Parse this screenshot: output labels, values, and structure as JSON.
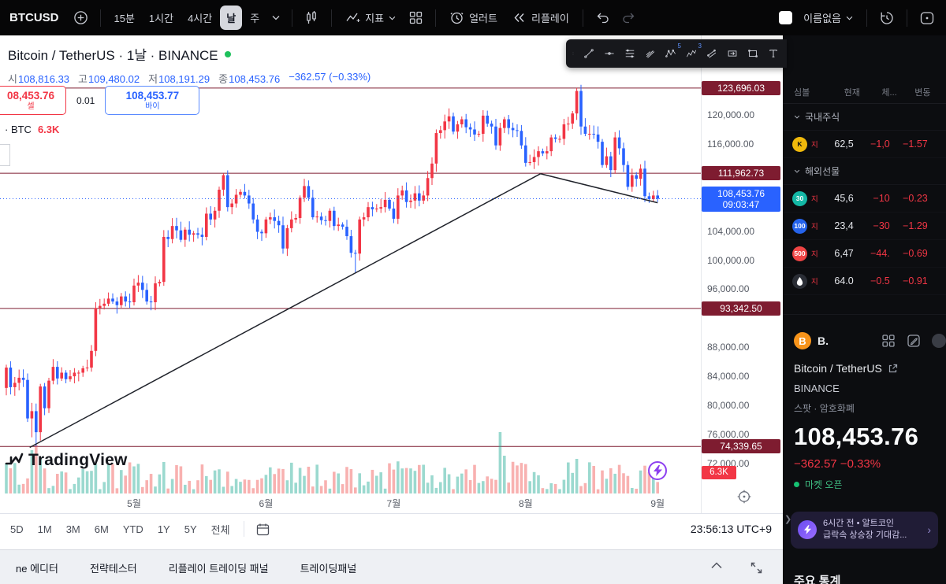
{
  "topbar": {
    "symbol": "BTCUSD",
    "intervals": [
      "15분",
      "1시간",
      "4시간",
      "날",
      "주"
    ],
    "selected": "날",
    "indicators": "지표",
    "alerts": "얼러트",
    "replay": "리플레이",
    "layout_name": "이름없음"
  },
  "header": {
    "title": "Bitcoin / TetherUS · 1날 · BINANCE",
    "ohlc": {
      "o_label": "시",
      "o": "108,816.33",
      "h_label": "고",
      "h": "109,480.02",
      "l_label": "저",
      "l": "108,191.29",
      "c_label": "종",
      "c": "108,453.76",
      "change": "−362.57 (−0.33%)"
    },
    "sell": {
      "price": "08,453.76",
      "label": "셀"
    },
    "spread": "0.01",
    "buy": {
      "price": "108,453.77",
      "label": "바이"
    },
    "volume_legend": {
      "prefix": "· BTC",
      "value": "6.3K"
    }
  },
  "watermark": "TradingView",
  "drawing_toolbar": {
    "tools": [
      {
        "name": "drag-handle"
      },
      {
        "name": "trend-line"
      },
      {
        "name": "horizontal-line"
      },
      {
        "name": "fib-retracement"
      },
      {
        "name": "pitchfork"
      },
      {
        "name": "xabcd-pattern",
        "badge": "5"
      },
      {
        "name": "elliott-wave",
        "badge": "3"
      },
      {
        "name": "parallel-channel"
      },
      {
        "name": "date-price-range"
      },
      {
        "name": "rectangle"
      },
      {
        "name": "text-tool"
      }
    ]
  },
  "chart_data": {
    "type": "candlestick",
    "symbol": "BTCUSD",
    "exchange": "BINANCE",
    "interval": "1날",
    "first_open": 82400,
    "closes": [
      85200,
      82500,
      83100,
      83800,
      83500,
      78200,
      79200,
      76300,
      82600,
      79600,
      83400,
      85300,
      83700,
      84500,
      83600,
      84000,
      84500,
      84500,
      85100,
      85200,
      87500,
      93400,
      93700,
      94000,
      94700,
      94300,
      93800,
      95000,
      94300,
      94200,
      96500,
      96900,
      95900,
      94300,
      94200,
      96800,
      97000,
      103200,
      102900,
      104700,
      104100,
      102800,
      104200,
      103500,
      103700,
      103500,
      103200,
      106400,
      105600,
      106800,
      109700,
      111700,
      107300,
      107800,
      109000,
      109400,
      108900,
      107800,
      105600,
      103900,
      103700,
      105600,
      105900,
      105400,
      104800,
      101600,
      104400,
      105600,
      105800,
      108600,
      110200,
      108600,
      105900,
      106000,
      105500,
      105400,
      106800,
      104700,
      104900,
      104600,
      103300,
      101000,
      100900,
      105600,
      105900,
      107300,
      107000,
      107100,
      107300,
      108300,
      107100,
      105700,
      108900,
      109600,
      108000,
      108200,
      109200,
      108200,
      108900,
      111300,
      113300,
      117500,
      117900,
      119100,
      119800,
      117700,
      118700,
      119400,
      118300,
      118000,
      117300,
      117400,
      119900,
      118800,
      118400,
      115800,
      118200,
      119400,
      118200,
      117900,
      117800,
      115800,
      113400,
      113500,
      114200,
      115000,
      114700,
      115000,
      116900,
      116700,
      116700,
      118700,
      118800,
      120200,
      123300,
      118400,
      117400,
      117400,
      117300,
      116300,
      113100,
      114300,
      112400,
      116900,
      115400,
      113100,
      110100,
      111700,
      111200,
      112600,
      108800,
      108400,
      108900,
      108453.76
    ],
    "high_overrides": {
      "51": 111962.73,
      "104": 120900,
      "134": 123696.03
    },
    "low_overrides": {
      "6": 75600,
      "7": 74339.65,
      "82": 98300
    },
    "volume_spikes": {
      "6": 55,
      "7": 62,
      "8": 46,
      "37": 40,
      "116": 78,
      "117": 48,
      "134": 44
    },
    "price_lines": [
      {
        "price": 123696.03,
        "text": "123,696.03"
      },
      {
        "price": 111962.73,
        "text": "111,962.73"
      },
      {
        "price": 93342.5,
        "text": "93,342.50"
      },
      {
        "price": 74339.65,
        "text": "74,339.65"
      }
    ],
    "current_price": {
      "price": 108453.76,
      "text": "108,453.76",
      "time": "09:03:47"
    },
    "trendlines": [
      {
        "from": {
          "i": 5.5,
          "p": 74200
        },
        "to": {
          "i": 125.5,
          "p": 111900
        }
      },
      {
        "from": {
          "i": 125.5,
          "p": 111900
        },
        "to": {
          "i": 153,
          "p": 107900
        }
      }
    ],
    "months": [
      {
        "label": "5월",
        "i": 30
      },
      {
        "label": "6월",
        "i": 61
      },
      {
        "label": "7월",
        "i": 91
      },
      {
        "label": "8월",
        "i": 122
      },
      {
        "label": "9월",
        "i": 153
      }
    ],
    "y_axis_labels": [
      {
        "price": 120000,
        "text": "120,000.00"
      },
      {
        "price": 116000,
        "text": "116,000.00"
      },
      {
        "price": 104000,
        "text": "104,000.00"
      },
      {
        "price": 100000,
        "text": "100,000.00"
      },
      {
        "price": 96000,
        "text": "96,000.00"
      },
      {
        "price": 88000,
        "text": "88,000.00"
      },
      {
        "price": 84000,
        "text": "84,000.00"
      },
      {
        "price": 80000,
        "text": "80,000.00"
      },
      {
        "price": 76000,
        "text": "76,000.00"
      },
      {
        "price": 72000,
        "text": "72,000.00"
      }
    ],
    "volume_axis_label": "6.3K",
    "colors": {
      "up": "#f23645",
      "down": "#2962ff",
      "vol_up": "rgba(34,171,148,0.45)",
      "vol_down": "rgba(239,83,80,0.45)",
      "line": "#7e1c30",
      "trend": "#20232b",
      "current": "#2962ff"
    },
    "x_start": 8,
    "x_step": 5.4,
    "y_ref": {
      "price": 120000,
      "y": 101,
      "per_unit": 0.009225
    },
    "ylim": [
      66500,
      125500
    ]
  },
  "footer": {
    "ranges": [
      "5D",
      "1M",
      "3M",
      "6M",
      "YTD",
      "1Y",
      "5Y",
      "전체"
    ],
    "clock": "23:56:13 UTC+9"
  },
  "bottombar": {
    "tabs": [
      "ne 에디터",
      "전략테스터",
      "리플레이 트레이딩 패널",
      "트레이딩패널"
    ]
  },
  "sidebar": {
    "columns": [
      "심볼",
      "현재",
      "체...",
      "변동"
    ],
    "sections": [
      {
        "title": "국내주식",
        "rows": [
          {
            "icon": "K",
            "icon_bg": "#f0b90b",
            "icon_color": "#111111",
            "badge": "지",
            "price": "62,5",
            "change": "−1,0",
            "pct": "−1.57"
          }
        ]
      },
      {
        "title": "해외선물",
        "rows": [
          {
            "icon": "30",
            "icon_bg": "#14b8a6",
            "icon_color": "#ffffff",
            "badge": "지",
            "price": "45,6",
            "change": "−10",
            "pct": "−0.23"
          },
          {
            "icon": "100",
            "icon_bg": "#2563eb",
            "icon_color": "#ffffff",
            "badge": "지",
            "price": "23,4",
            "change": "−30",
            "pct": "−1.29"
          },
          {
            "icon": "500",
            "icon_bg": "#ef4444",
            "icon_color": "#ffffff",
            "badge": "지",
            "price": "6,47",
            "change": "−44.",
            "pct": "−0.69"
          },
          {
            "icon": "drop",
            "icon_bg": "#2a2d35",
            "icon_color": "#ffffff",
            "badge": "지",
            "price": "64.0",
            "change": "−0.5",
            "pct": "−0.91"
          }
        ]
      }
    ],
    "detail": {
      "short": "B.",
      "title": "Bitcoin / TetherUS",
      "exchange": "BINANCE",
      "market": "스팟 · 암호화폐",
      "price": "108,453.76",
      "change": "−362.57 −0.33%",
      "status": "마켓 오픈",
      "news_time": "6시간 전 • 알트코인",
      "news_text": "급락속 상승장 기대감...",
      "stats_title": "주요 통계"
    }
  }
}
